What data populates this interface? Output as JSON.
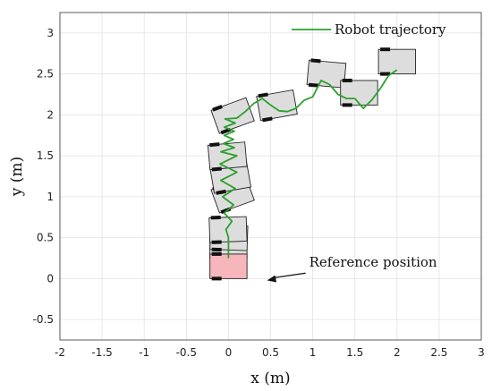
{
  "chart_data": {
    "type": "line",
    "title": "",
    "xlabel": "x (m)",
    "ylabel": "y (m)",
    "xlim": [
      -2,
      3
    ],
    "ylim": [
      -0.75,
      3.25
    ],
    "xticks": [
      -2,
      -1.5,
      -1,
      -0.5,
      0,
      0.5,
      1,
      1.5,
      2,
      2.5,
      3
    ],
    "yticks": [
      -0.5,
      0,
      0.5,
      1,
      1.5,
      2,
      2.5,
      3
    ],
    "xtick_labels": [
      "-2",
      "-1.5",
      "-1",
      "-0.5",
      "0",
      "0.5",
      "1",
      "1.5",
      "2",
      "2.5",
      "3"
    ],
    "ytick_labels": [
      "-0.5",
      "0",
      "0.5",
      "1",
      "1.5",
      "2",
      "2.5",
      "3"
    ],
    "grid": true,
    "legend": {
      "position": "top-right",
      "entries": [
        "Robot trajectory"
      ]
    },
    "colors": {
      "trajectory": "#2ca02c",
      "robot": "#dddddd",
      "reference": "#f7b6bb",
      "wheel": "#111111"
    },
    "series": [
      {
        "name": "Robot trajectory",
        "x": [
          0.0,
          0.0,
          -0.03,
          0.04,
          -0.05,
          0.06,
          -0.07,
          0.08,
          -0.09,
          0.1,
          -0.1,
          0.1,
          -0.09,
          0.07,
          -0.06,
          0.06,
          -0.05,
          0.07,
          -0.05,
          0.08,
          -0.04,
          0.1,
          0.2,
          0.3,
          0.4,
          0.5,
          0.6,
          0.7,
          0.8,
          0.9,
          1.0,
          1.1,
          1.2,
          1.3,
          1.4,
          1.5,
          1.6,
          1.7,
          1.8,
          1.9,
          2.0
        ],
        "y": [
          0.25,
          0.5,
          0.6,
          0.7,
          0.8,
          0.9,
          1.0,
          1.1,
          1.2,
          1.3,
          1.4,
          1.5,
          1.55,
          1.6,
          1.65,
          1.7,
          1.75,
          1.8,
          1.85,
          1.9,
          1.95,
          1.96,
          2.04,
          2.14,
          2.2,
          2.12,
          2.05,
          2.04,
          2.08,
          2.18,
          2.22,
          2.42,
          2.37,
          2.25,
          2.2,
          2.2,
          2.08,
          2.18,
          2.32,
          2.48,
          2.55
        ]
      }
    ],
    "robots": [
      {
        "x": 0.0,
        "y": 0.25,
        "theta_deg": 90
      },
      {
        "x": 0.0,
        "y": 0.35,
        "theta_deg": 88
      },
      {
        "x": 0.0,
        "y": 0.45,
        "theta_deg": 92
      },
      {
        "x": 0.1,
        "y": 0.88,
        "theta_deg": 110
      },
      {
        "x": 0.05,
        "y": 1.08,
        "theta_deg": 100
      },
      {
        "x": 0.0,
        "y": 1.35,
        "theta_deg": 95
      },
      {
        "x": 0.1,
        "y": 1.85,
        "theta_deg": 110
      },
      {
        "x": 0.6,
        "y": 1.97,
        "theta_deg": 100
      },
      {
        "x": 1.15,
        "y": 2.35,
        "theta_deg": 85
      },
      {
        "x": 1.55,
        "y": 2.12,
        "theta_deg": 90
      },
      {
        "x": 2.0,
        "y": 2.5,
        "theta_deg": 90
      }
    ],
    "reference_robot": {
      "x": 0.0,
      "y": 0.0,
      "theta_deg": 90
    },
    "robot_size": {
      "length": 0.3,
      "width": 0.44
    },
    "annotations": [
      {
        "text": "Reference position",
        "x": 1.0,
        "y": 0.1,
        "arrow_to": [
          0.5,
          0.0
        ]
      }
    ]
  }
}
